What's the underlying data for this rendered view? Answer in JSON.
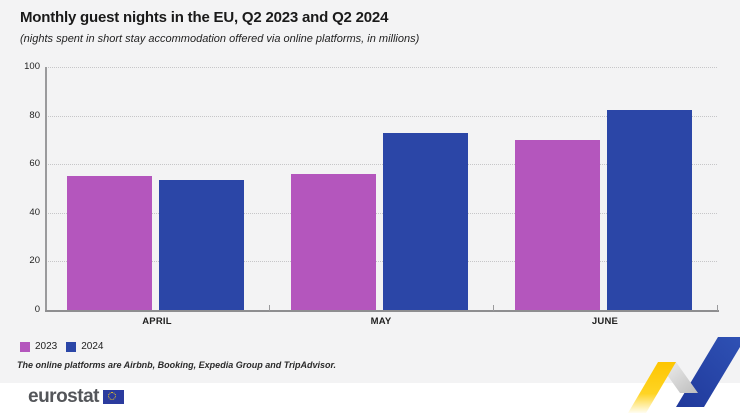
{
  "header": {
    "title": "Monthly guest nights in the EU, Q2 2023 and Q2 2024",
    "subtitle": "(nights spent in short stay accommodation offered via online platforms, in millions)"
  },
  "chart_data": {
    "type": "bar",
    "categories": [
      "APRIL",
      "MAY",
      "JUNE"
    ],
    "series": [
      {
        "name": "2023",
        "color": "#b456bd",
        "values": [
          55,
          56,
          70
        ]
      },
      {
        "name": "2024",
        "color": "#2b46a7",
        "values": [
          53.5,
          73,
          82.5
        ]
      }
    ],
    "title": "Monthly guest nights in the EU, Q2 2023 and Q2 2024",
    "xlabel": "",
    "ylabel": "",
    "ylim": [
      0,
      100
    ],
    "yticks": [
      0,
      20,
      40,
      60,
      80,
      100
    ],
    "grid": "horizontal-dotted",
    "legend_position": "bottom-left"
  },
  "legend": {
    "items": [
      {
        "label": "2023",
        "color": "#b456bd"
      },
      {
        "label": "2024",
        "color": "#2b46a7"
      }
    ]
  },
  "footnote": "The online platforms are Airbnb, Booking, Expedia Group and TripAdvisor.",
  "footer": {
    "logo_text": "eurostat"
  },
  "colors": {
    "background": "#f3f3f4",
    "bar_2023": "#b456bd",
    "bar_2024": "#2b46a7",
    "axis": "#9a9a9c",
    "gridline": "#c6c6c8",
    "text": "#1a1a1a",
    "logo_gray": "#54565a",
    "zigzag_yellow": "#fdc500",
    "zigzag_blue": "#2946a5"
  }
}
